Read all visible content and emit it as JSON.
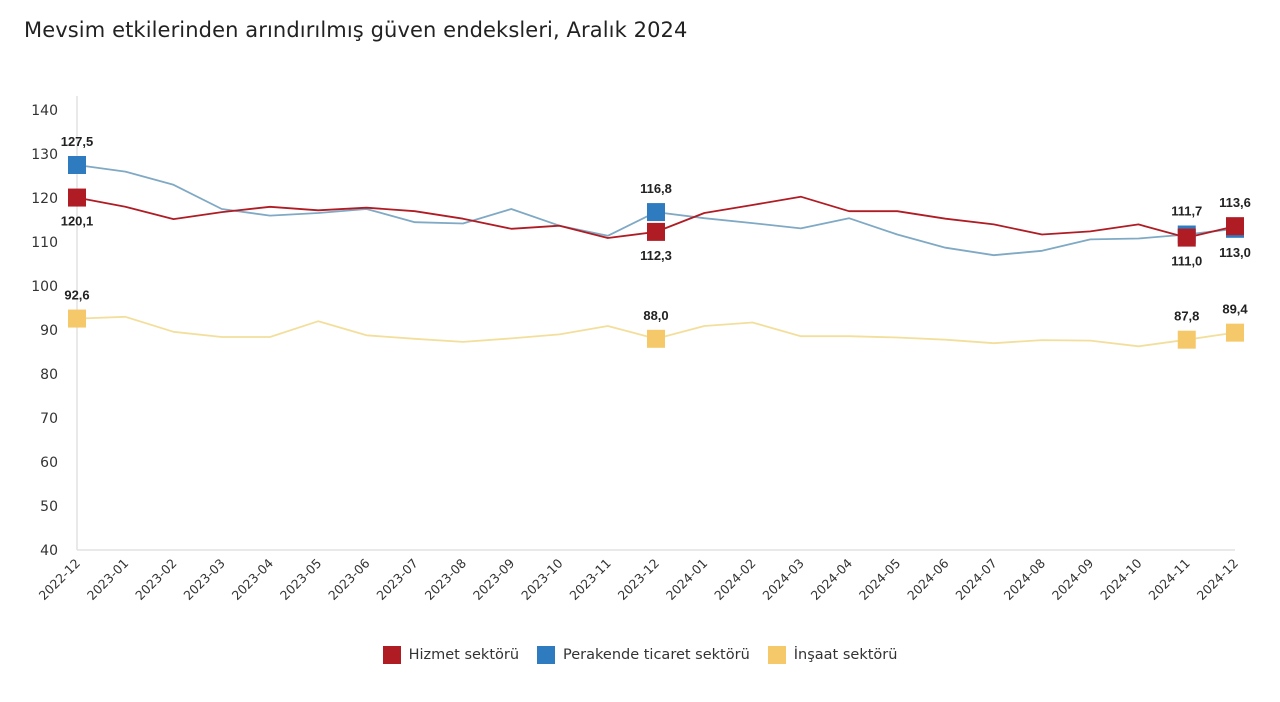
{
  "title": "Mevsim etkilerinden arındırılmış güven endeksleri, Aralık 2024",
  "chart_data": {
    "type": "line",
    "title": "Mevsim etkilerinden arındırılmış güven endeksleri, Aralık 2024",
    "xlabel": "",
    "ylabel": "",
    "ylim": [
      40,
      140
    ],
    "yticks": [
      40,
      50,
      60,
      70,
      80,
      90,
      100,
      110,
      120,
      130,
      140
    ],
    "grid": false,
    "legend_position": "bottom",
    "categories": [
      "2022-12",
      "2023-01",
      "2023-02",
      "2023-03",
      "2023-04",
      "2023-05",
      "2023-06",
      "2023-07",
      "2023-08",
      "2023-09",
      "2023-10",
      "2023-11",
      "2023-12",
      "2024-01",
      "2024-02",
      "2024-03",
      "2024-04",
      "2024-05",
      "2024-06",
      "2024-07",
      "2024-08",
      "2024-09",
      "2024-10",
      "2024-11",
      "2024-12"
    ],
    "series": [
      {
        "name": "Hizmet sektörü",
        "color": "#b01c24",
        "values": [
          120.1,
          118.0,
          115.2,
          116.8,
          118.0,
          117.2,
          117.8,
          117.0,
          115.3,
          113.0,
          113.7,
          110.9,
          112.3,
          116.6,
          118.4,
          120.3,
          117.0,
          117.0,
          115.3,
          114.0,
          111.7,
          112.4,
          114.0,
          111.0,
          113.6
        ],
        "labels": [
          {
            "index": 0,
            "text": "120,1",
            "pos": "below"
          },
          {
            "index": 12,
            "text": "112,3",
            "pos": "below"
          },
          {
            "index": 23,
            "text": "111,0",
            "pos": "below"
          },
          {
            "index": 24,
            "text": "113,6",
            "pos": "above"
          }
        ]
      },
      {
        "name": "Perakende ticaret sektörü",
        "color": "#2e7bbf",
        "line_color": "#7fa9c4",
        "values": [
          127.5,
          126.0,
          123.0,
          117.5,
          116.0,
          116.6,
          117.5,
          114.5,
          114.2,
          117.5,
          113.7,
          111.4,
          116.8,
          115.4,
          114.3,
          113.1,
          115.4,
          111.7,
          108.7,
          107.0,
          108.0,
          110.6,
          110.8,
          111.7,
          113.0
        ],
        "labels": [
          {
            "index": 0,
            "text": "127,5",
            "pos": "above"
          },
          {
            "index": 12,
            "text": "116,8",
            "pos": "above"
          },
          {
            "index": 23,
            "text": "111,7",
            "pos": "above"
          },
          {
            "index": 24,
            "text": "113,0",
            "pos": "below"
          }
        ]
      },
      {
        "name": "İnşaat sektörü",
        "color": "#f5c96a",
        "line_color": "#f3df9c",
        "values": [
          92.6,
          93.0,
          89.6,
          88.4,
          88.4,
          92.0,
          88.8,
          88.0,
          87.3,
          88.1,
          89.0,
          90.9,
          88.0,
          90.9,
          91.7,
          88.6,
          88.6,
          88.3,
          87.8,
          87.0,
          87.7,
          87.6,
          86.3,
          87.8,
          89.4
        ],
        "labels": [
          {
            "index": 0,
            "text": "92,6",
            "pos": "above"
          },
          {
            "index": 12,
            "text": "88,0",
            "pos": "above"
          },
          {
            "index": 23,
            "text": "87,8",
            "pos": "above"
          },
          {
            "index": 24,
            "text": "89,4",
            "pos": "above"
          }
        ]
      }
    ],
    "marker_indices": [
      0,
      12,
      23,
      24
    ]
  },
  "legend": [
    {
      "label": "Hizmet sektörü",
      "color": "#b01c24"
    },
    {
      "label": "Perakende ticaret sektörü",
      "color": "#2e7bbf"
    },
    {
      "label": "İnşaat sektörü",
      "color": "#f5c96a"
    }
  ]
}
